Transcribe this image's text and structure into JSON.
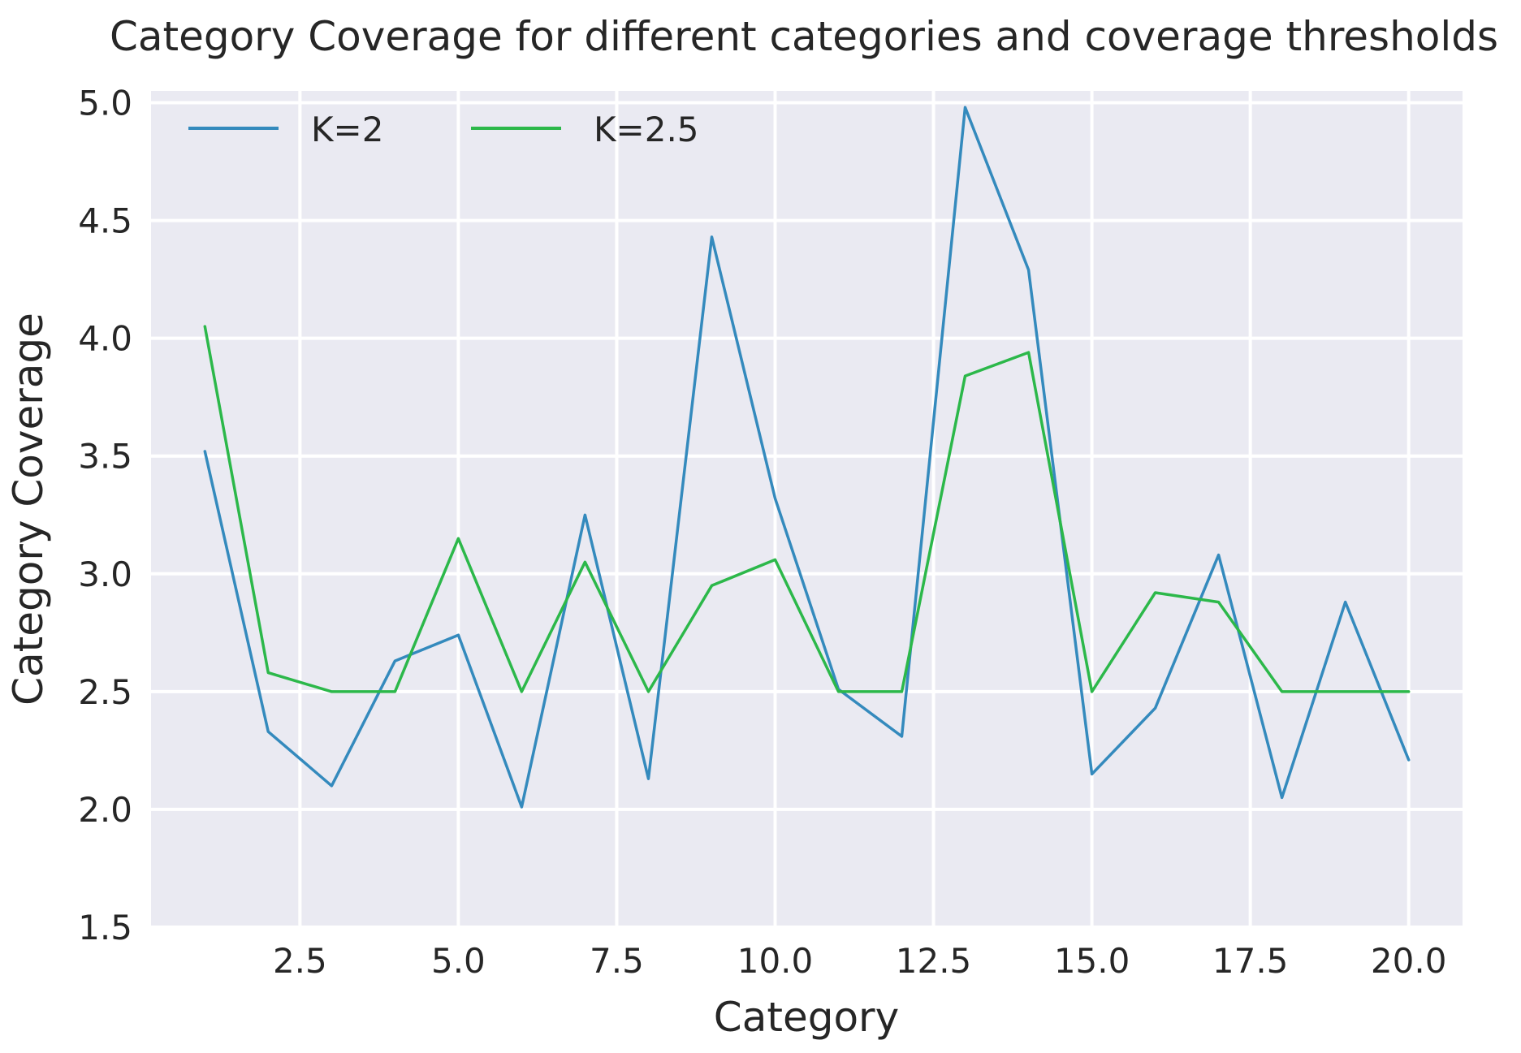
{
  "chart_data": {
    "type": "line",
    "title": "Category Coverage for different categories and coverage thresholds",
    "xlabel": "Category",
    "ylabel": "Category Coverage",
    "xlim": [
      0.15,
      20.85
    ],
    "ylim": [
      1.5,
      5.05
    ],
    "xticks": [
      2.5,
      5.0,
      7.5,
      10.0,
      12.5,
      15.0,
      17.5,
      20.0
    ],
    "xtick_labels": [
      "2.5",
      "5.0",
      "7.5",
      "10.0",
      "12.5",
      "15.0",
      "17.5",
      "20.0"
    ],
    "yticks": [
      1.5,
      2.0,
      2.5,
      3.0,
      3.5,
      4.0,
      4.5,
      5.0
    ],
    "ytick_labels": [
      "1.5",
      "2.0",
      "2.5",
      "3.0",
      "3.5",
      "4.0",
      "4.5",
      "5.0"
    ],
    "x": [
      1,
      2,
      3,
      4,
      5,
      6,
      7,
      8,
      9,
      10,
      11,
      12,
      13,
      14,
      15,
      16,
      17,
      18,
      19,
      20
    ],
    "series": [
      {
        "name": "K=2",
        "color": "#348ABD",
        "values": [
          3.52,
          2.33,
          2.1,
          2.63,
          2.74,
          2.01,
          3.25,
          2.13,
          4.43,
          3.32,
          2.51,
          2.31,
          4.98,
          4.29,
          2.15,
          2.43,
          3.08,
          2.05,
          2.88,
          2.21
        ]
      },
      {
        "name": "K=2.5",
        "color": "#2CB84A",
        "values": [
          4.05,
          2.58,
          2.5,
          2.5,
          3.15,
          2.5,
          3.05,
          2.5,
          2.95,
          3.06,
          2.5,
          2.5,
          3.84,
          3.94,
          2.5,
          2.92,
          2.88,
          2.5,
          2.5,
          2.5
        ]
      }
    ],
    "grid": true,
    "legend": "upper-left, two columns"
  },
  "colors": {
    "plot_background": "#EAEAF2",
    "grid": "#FFFFFF",
    "text": "#262626"
  }
}
